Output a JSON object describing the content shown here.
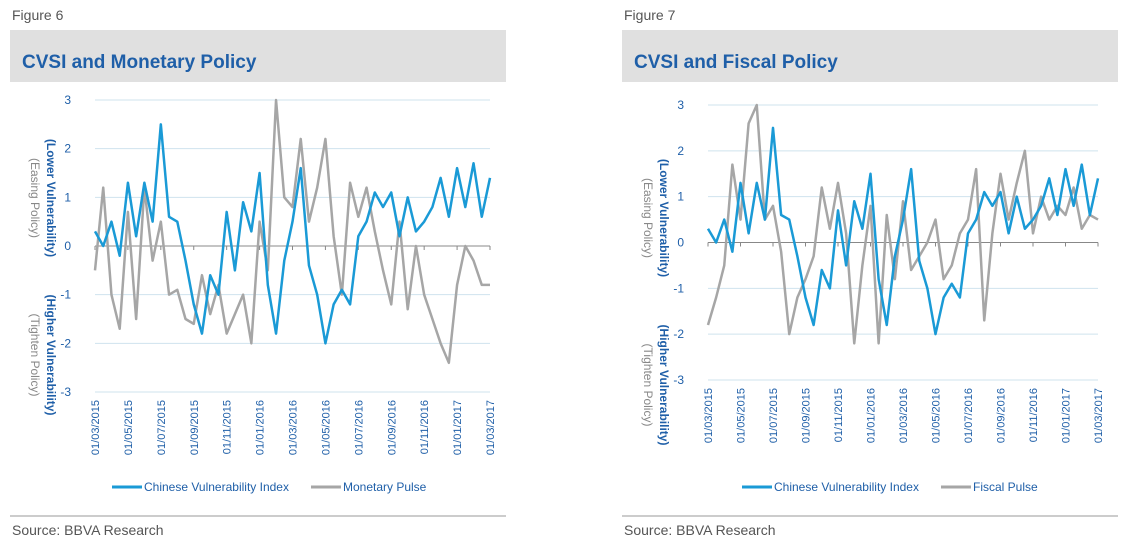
{
  "chart_data": [
    {
      "type": "line",
      "figure": "Figure 6",
      "title": "CVSI and Monetary Policy",
      "source": "Source: BBVA Research",
      "upper_label": [
        "(Lower Vulnerability)",
        "(Easing Policy)"
      ],
      "lower_label": [
        "(Higher Vulnerability)",
        "(Tighten Policy)"
      ],
      "x": [
        "01/03/2015",
        "15/03/2015",
        "01/04/2015",
        "15/04/2015",
        "01/05/2015",
        "15/05/2015",
        "01/06/2015",
        "15/06/2015",
        "01/07/2015",
        "15/07/2015",
        "01/08/2015",
        "15/08/2015",
        "01/09/2015",
        "15/09/2015",
        "01/10/2015",
        "15/10/2015",
        "01/11/2015",
        "15/11/2015",
        "01/12/2015",
        "15/12/2015",
        "01/01/2016",
        "15/01/2016",
        "01/02/2016",
        "15/02/2016",
        "01/03/2016",
        "15/03/2016",
        "01/04/2016",
        "15/04/2016",
        "01/05/2016",
        "15/05/2016",
        "01/06/2016",
        "15/06/2016",
        "01/07/2016",
        "15/07/2016",
        "01/08/2016",
        "15/08/2016",
        "01/09/2016",
        "15/09/2016",
        "01/10/2016",
        "15/10/2016",
        "01/11/2016",
        "15/11/2016",
        "01/12/2016",
        "15/12/2016",
        "01/01/2017",
        "15/01/2017",
        "01/02/2017",
        "15/02/2017",
        "01/03/2017"
      ],
      "xticks": [
        "01/03/2015",
        "01/05/2015",
        "01/07/2015",
        "01/09/2015",
        "01/11/2015",
        "01/01/2016",
        "01/03/2016",
        "01/05/2016",
        "01/07/2016",
        "01/09/2016",
        "01/11/2016",
        "01/01/2017",
        "01/03/2017"
      ],
      "ylim": [
        -3,
        3
      ],
      "yticks": [
        -3,
        -2,
        -1,
        0,
        1,
        2,
        3
      ],
      "grid": true,
      "series": [
        {
          "name": "Chinese Vulnerability Index",
          "color": "#1a9ad6",
          "values": [
            0.3,
            0.0,
            0.5,
            -0.2,
            1.3,
            0.2,
            1.3,
            0.5,
            2.5,
            0.6,
            0.5,
            -0.3,
            -1.2,
            -1.8,
            -0.6,
            -1.0,
            0.7,
            -0.5,
            0.9,
            0.3,
            1.5,
            -0.8,
            -1.8,
            -0.3,
            0.5,
            1.6,
            -0.4,
            -1.0,
            -2.0,
            -1.2,
            -0.9,
            -1.2,
            0.2,
            0.5,
            1.1,
            0.8,
            1.1,
            0.2,
            1.0,
            0.3,
            0.5,
            0.8,
            1.4,
            0.6,
            1.6,
            0.8,
            1.7,
            0.6,
            1.4
          ]
        },
        {
          "name": "Monetary Pulse",
          "color": "#a6a6a6",
          "values": [
            -0.5,
            1.2,
            -1.0,
            -1.7,
            0.7,
            -1.5,
            1.2,
            -0.3,
            0.5,
            -1.0,
            -0.9,
            -1.5,
            -1.6,
            -0.6,
            -1.4,
            -0.8,
            -1.8,
            -1.4,
            -1.0,
            -2.0,
            0.5,
            -0.5,
            3.0,
            1.0,
            0.8,
            2.2,
            0.5,
            1.2,
            2.2,
            0.2,
            -1.0,
            1.3,
            0.6,
            1.2,
            0.3,
            -0.5,
            -1.2,
            0.5,
            -1.3,
            0.0,
            -1.0,
            -1.5,
            -2.0,
            -2.4,
            -0.8,
            0.0,
            -0.3,
            -0.8,
            -0.8
          ]
        }
      ]
    },
    {
      "type": "line",
      "figure": "Figure 7",
      "title": "CVSI and Fiscal Policy",
      "source": "Source: BBVA Research",
      "upper_label": [
        "(Lower Vulnerability)",
        "(Easing Policy)"
      ],
      "lower_label": [
        "(Higher Vulnerability)",
        "(Tighten Policy)"
      ],
      "x": [
        "01/03/2015",
        "15/03/2015",
        "01/04/2015",
        "15/04/2015",
        "01/05/2015",
        "15/05/2015",
        "01/06/2015",
        "15/06/2015",
        "01/07/2015",
        "15/07/2015",
        "01/08/2015",
        "15/08/2015",
        "01/09/2015",
        "15/09/2015",
        "01/10/2015",
        "15/10/2015",
        "01/11/2015",
        "15/11/2015",
        "01/12/2015",
        "15/12/2015",
        "01/01/2016",
        "15/01/2016",
        "01/02/2016",
        "15/02/2016",
        "01/03/2016",
        "15/03/2016",
        "01/04/2016",
        "15/04/2016",
        "01/05/2016",
        "15/05/2016",
        "01/06/2016",
        "15/06/2016",
        "01/07/2016",
        "15/07/2016",
        "01/08/2016",
        "15/08/2016",
        "01/09/2016",
        "15/09/2016",
        "01/10/2016",
        "15/10/2016",
        "01/11/2016",
        "15/11/2016",
        "01/12/2016",
        "15/12/2016",
        "01/01/2017",
        "15/01/2017",
        "01/02/2017",
        "15/02/2017",
        "01/03/2017"
      ],
      "xticks": [
        "01/03/2015",
        "01/05/2015",
        "01/07/2015",
        "01/09/2015",
        "01/11/2015",
        "01/01/2016",
        "01/03/2016",
        "01/05/2016",
        "01/07/2016",
        "01/09/2016",
        "01/11/2016",
        "01/01/2017",
        "01/03/2017"
      ],
      "ylim": [
        -3,
        3
      ],
      "yticks": [
        -3,
        -2,
        -1,
        0,
        1,
        2,
        3
      ],
      "grid": true,
      "series": [
        {
          "name": "Chinese Vulnerability Index",
          "color": "#1a9ad6",
          "values": [
            0.3,
            0.0,
            0.5,
            -0.2,
            1.3,
            0.2,
            1.3,
            0.5,
            2.5,
            0.6,
            0.5,
            -0.3,
            -1.2,
            -1.8,
            -0.6,
            -1.0,
            0.7,
            -0.5,
            0.9,
            0.3,
            1.5,
            -0.8,
            -1.8,
            -0.3,
            0.5,
            1.6,
            -0.4,
            -1.0,
            -2.0,
            -1.2,
            -0.9,
            -1.2,
            0.2,
            0.5,
            1.1,
            0.8,
            1.1,
            0.2,
            1.0,
            0.3,
            0.5,
            0.8,
            1.4,
            0.6,
            1.6,
            0.8,
            1.7,
            0.6,
            1.4
          ]
        },
        {
          "name": "Fiscal Pulse",
          "color": "#a6a6a6",
          "values": [
            -1.8,
            -1.2,
            -0.5,
            1.7,
            0.5,
            2.6,
            3.0,
            0.5,
            0.8,
            -0.2,
            -2.0,
            -1.2,
            -0.8,
            -0.3,
            1.2,
            0.3,
            1.3,
            0.2,
            -2.2,
            -0.5,
            0.8,
            -2.2,
            0.6,
            -0.8,
            0.9,
            -0.6,
            -0.3,
            0.0,
            0.5,
            -0.8,
            -0.5,
            0.2,
            0.5,
            1.6,
            -1.7,
            0.2,
            1.5,
            0.5,
            1.3,
            2.0,
            0.2,
            1.0,
            0.5,
            0.8,
            0.6,
            1.2,
            0.3,
            0.6,
            0.5
          ]
        }
      ]
    }
  ]
}
